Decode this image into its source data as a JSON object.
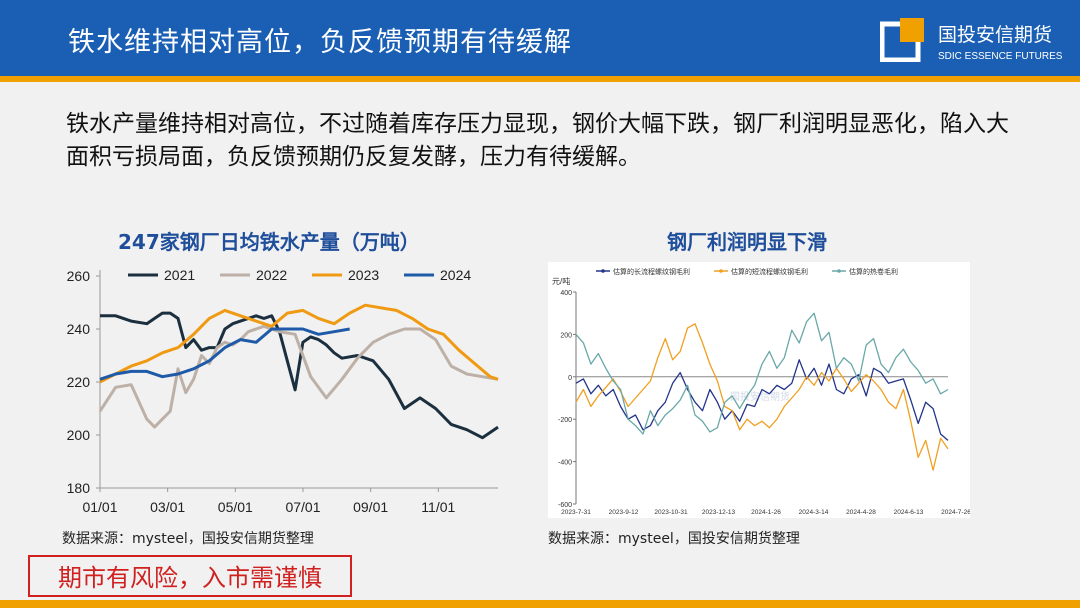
{
  "header": {
    "title": "铁水维持相对高位，负反馈预期有待缓解",
    "company_cn": "国投安信期货",
    "company_en": "SDIC ESSENCE FUTURES"
  },
  "summary": "铁水产量维持相对高位，不过随着库存压力显现，钢价大幅下跌，钢厂利润明显恶化，陷入大面积亏损局面，负反馈预期仍反复发酵，压力有待缓解。",
  "left": {
    "source": "数据来源：mysteel，国投安信期货整理"
  },
  "right": {
    "source": "数据来源：mysteel，国投安信期货整理",
    "watermark": "国投安信期货"
  },
  "risk_notice": "期市有风险，入市需谨慎",
  "chart_data": [
    {
      "type": "line",
      "title": "247家钢厂日均铁水产量（万吨）",
      "x_ticks": [
        "01/01",
        "03/01",
        "05/01",
        "07/01",
        "09/01",
        "11/01"
      ],
      "ylim": [
        180,
        260
      ],
      "y_ticks": [
        180,
        200,
        220,
        240,
        260
      ],
      "legend_position": "top",
      "series": [
        {
          "name": "2021",
          "color": "#1b2f3f",
          "x": [
            1,
            3,
            5,
            7,
            8,
            9,
            10,
            11,
            12,
            13,
            14,
            15,
            16,
            17,
            18,
            19,
            20,
            21,
            22,
            23,
            24,
            25,
            26,
            27,
            28,
            29,
            30,
            31,
            32,
            34,
            36,
            38,
            40,
            42,
            44,
            46,
            48,
            50,
            52
          ],
          "y": [
            245,
            245,
            243,
            242,
            244,
            246,
            246,
            244,
            233,
            236,
            232,
            233,
            233,
            240,
            242,
            243,
            244,
            245,
            244,
            245,
            239,
            228,
            217,
            235,
            237,
            236,
            234,
            231,
            229,
            230,
            228,
            221,
            210,
            214,
            210,
            204,
            202,
            199,
            203
          ]
        },
        {
          "name": "2022",
          "color": "#bdb0a6",
          "x": [
            1,
            3,
            5,
            7,
            8,
            9,
            10,
            11,
            12,
            13,
            14,
            15,
            16,
            17,
            18,
            19,
            20,
            21,
            22,
            23,
            24,
            26,
            28,
            30,
            32,
            34,
            36,
            38,
            40,
            42,
            44,
            46,
            48,
            50,
            52
          ],
          "y": [
            209,
            218,
            219,
            206,
            203,
            206,
            209,
            225,
            216,
            221,
            230,
            227,
            233,
            235,
            234,
            236,
            239,
            240,
            241,
            240,
            239,
            238,
            222,
            214,
            221,
            229,
            235,
            238,
            240,
            240,
            236,
            226,
            223,
            222,
            221
          ]
        },
        {
          "name": "2023",
          "color": "#f09a13",
          "x": [
            1,
            3,
            5,
            7,
            9,
            11,
            13,
            15,
            17,
            19,
            21,
            23,
            25,
            27,
            29,
            31,
            33,
            35,
            37,
            39,
            41,
            43,
            45,
            47,
            49,
            51,
            52
          ],
          "y": [
            220,
            223,
            226,
            228,
            231,
            233,
            238,
            244,
            247,
            245,
            243,
            241,
            246,
            247,
            244,
            242,
            246,
            249,
            248,
            247,
            244,
            240,
            238,
            232,
            227,
            222,
            221
          ]
        },
        {
          "name": "2024",
          "color": "#1e5aa8",
          "x": [
            1,
            3,
            5,
            7,
            9,
            11,
            13,
            15,
            17,
            19,
            21,
            23,
            25,
            27,
            29,
            31,
            33
          ],
          "y": [
            221,
            223,
            224,
            224,
            222,
            223,
            225,
            228,
            233,
            236,
            235,
            240,
            240,
            240,
            238,
            239,
            240
          ]
        }
      ]
    },
    {
      "type": "line",
      "title": "钢厂利润明显下滑",
      "ylabel": "元/吨",
      "ylim": [
        -600,
        400
      ],
      "y_ticks": [
        -600,
        -400,
        -200,
        0,
        200,
        400
      ],
      "x_ticks": [
        "2023-7-31",
        "2023-9-12",
        "2023-10-31",
        "2023-12-13",
        "2024-1-26",
        "2024-3-14",
        "2024-4-28",
        "2024-6-13",
        "2024-7-26"
      ],
      "legend_position": "top",
      "series": [
        {
          "name": "估算的长流程螺纹钢毛利",
          "color": "#23348a",
          "x": [
            0,
            2,
            4,
            6,
            8,
            10,
            12,
            14,
            16,
            18,
            20,
            22,
            24,
            26,
            28,
            30,
            32,
            34,
            36,
            38,
            40,
            42,
            44,
            46,
            48,
            50,
            52,
            54,
            56,
            58,
            60,
            62,
            64,
            66,
            68,
            70,
            72,
            74,
            76,
            78,
            80,
            82,
            84,
            86,
            88,
            90,
            92,
            94,
            96,
            98,
            100
          ],
          "y": [
            -30,
            -10,
            -80,
            -40,
            -90,
            -60,
            -140,
            -200,
            -180,
            -250,
            -230,
            -160,
            -120,
            -30,
            20,
            -60,
            -120,
            -160,
            -60,
            -120,
            -200,
            -160,
            -210,
            -130,
            -140,
            -60,
            -80,
            -40,
            -60,
            -30,
            80,
            -10,
            40,
            -40,
            60,
            -60,
            -80,
            -10,
            10,
            -90,
            40,
            20,
            -30,
            -20,
            -10,
            -110,
            -220,
            -120,
            -150,
            -270,
            -300
          ]
        },
        {
          "name": "估算的短流程螺纹钢毛利",
          "color": "#f0a020",
          "x": [
            0,
            2,
            4,
            6,
            8,
            10,
            12,
            14,
            16,
            18,
            20,
            22,
            24,
            26,
            28,
            30,
            32,
            34,
            36,
            38,
            40,
            42,
            44,
            46,
            48,
            50,
            52,
            54,
            56,
            58,
            60,
            62,
            64,
            66,
            68,
            70,
            72,
            74,
            76,
            78,
            80,
            82,
            84,
            86,
            88,
            90,
            92,
            94,
            96,
            98,
            100
          ],
          "y": [
            -120,
            -60,
            -140,
            -90,
            -50,
            -10,
            -70,
            -140,
            -100,
            -60,
            -20,
            90,
            180,
            80,
            120,
            230,
            250,
            160,
            60,
            -20,
            -140,
            -160,
            -250,
            -200,
            -230,
            -210,
            -240,
            -200,
            -140,
            -100,
            -60,
            0,
            -40,
            20,
            -20,
            40,
            -10,
            -70,
            -30,
            10,
            -20,
            -60,
            -120,
            -150,
            -60,
            -210,
            -380,
            -300,
            -440,
            -290,
            -340
          ]
        },
        {
          "name": "估算的热卷毛利",
          "color": "#6aa8a8",
          "x": [
            0,
            2,
            4,
            6,
            8,
            10,
            12,
            14,
            16,
            18,
            20,
            22,
            24,
            26,
            28,
            30,
            32,
            34,
            36,
            38,
            40,
            42,
            44,
            46,
            48,
            50,
            52,
            54,
            56,
            58,
            60,
            62,
            64,
            66,
            68,
            70,
            72,
            74,
            76,
            78,
            80,
            82,
            84,
            86,
            88,
            90,
            92,
            94,
            96,
            98,
            100
          ],
          "y": [
            200,
            160,
            60,
            110,
            40,
            -20,
            -60,
            -200,
            -230,
            -270,
            -160,
            -230,
            -180,
            -150,
            -110,
            -40,
            -180,
            -210,
            -260,
            -240,
            -120,
            -90,
            -150,
            -90,
            -40,
            60,
            120,
            40,
            90,
            220,
            160,
            260,
            300,
            170,
            210,
            40,
            90,
            60,
            -20,
            150,
            180,
            60,
            20,
            90,
            130,
            70,
            30,
            -30,
            -10,
            -80,
            -60
          ]
        }
      ]
    }
  ]
}
